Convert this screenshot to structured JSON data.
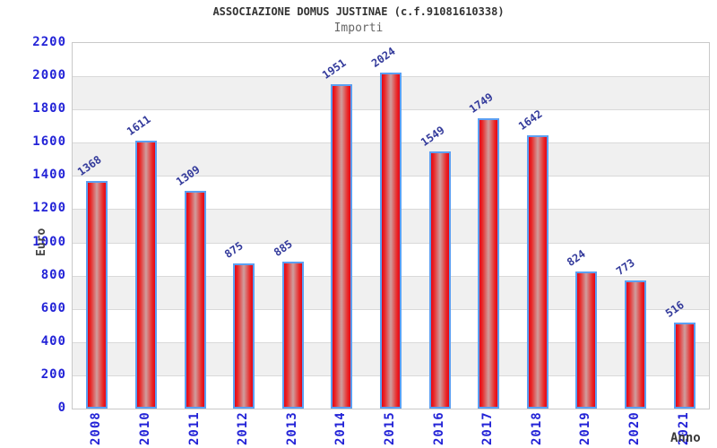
{
  "chart_data": {
    "type": "bar",
    "title": "ASSOCIAZIONE DOMUS JUSTINAE (c.f.91081610338)",
    "subtitle": "Importi",
    "xlabel": "Anno",
    "ylabel": "Euro",
    "categories": [
      "2008",
      "2010",
      "2011",
      "2012",
      "2013",
      "2014",
      "2015",
      "2016",
      "2017",
      "2018",
      "2019",
      "2020",
      "2021"
    ],
    "values": [
      1368,
      1611,
      1309,
      875,
      885,
      1951,
      2024,
      1549,
      1749,
      1642,
      824,
      773,
      516
    ],
    "ylim": [
      0,
      2200
    ],
    "ytick_step": 200,
    "grid": true,
    "legend_position": "none",
    "band_colors": [
      "#ffffff",
      "#f0f0f0"
    ],
    "gridline_color": "#d9d9d9",
    "bar_fill_edge_color": "#e1071a",
    "bar_fill_center_color": "#cf9e9e",
    "bar_border_color": "#5b9ff2",
    "tick_label_color": "#2323d7",
    "value_label_color": "#333a9b",
    "title_color": "#333333",
    "subtitle_color": "#666666"
  }
}
